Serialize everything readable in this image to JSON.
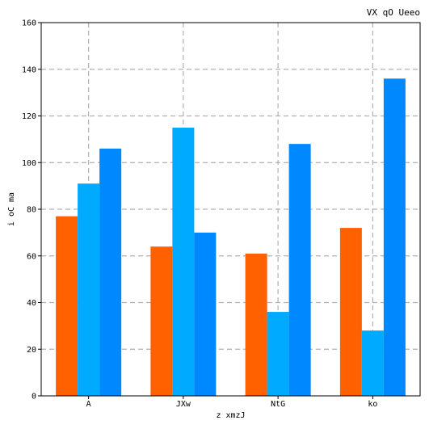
{
  "chart_data": {
    "type": "bar",
    "title": "VX qO Ueeo",
    "xlabel": "z xmzJ",
    "ylabel": "i oC ma",
    "categories": [
      "A",
      "JXw",
      "NtG",
      "ko"
    ],
    "series": [
      {
        "values": [
          77,
          64,
          61,
          72
        ],
        "color": "#ff6000"
      },
      {
        "values": [
          91,
          115,
          36,
          28
        ],
        "color": "#00aaff"
      },
      {
        "values": [
          106,
          70,
          108,
          136
        ],
        "color": "#0088ff"
      }
    ],
    "ylim": [
      0,
      160
    ],
    "yticks": [
      0,
      20,
      40,
      60,
      80,
      100,
      120,
      140,
      160
    ],
    "grid": true
  }
}
